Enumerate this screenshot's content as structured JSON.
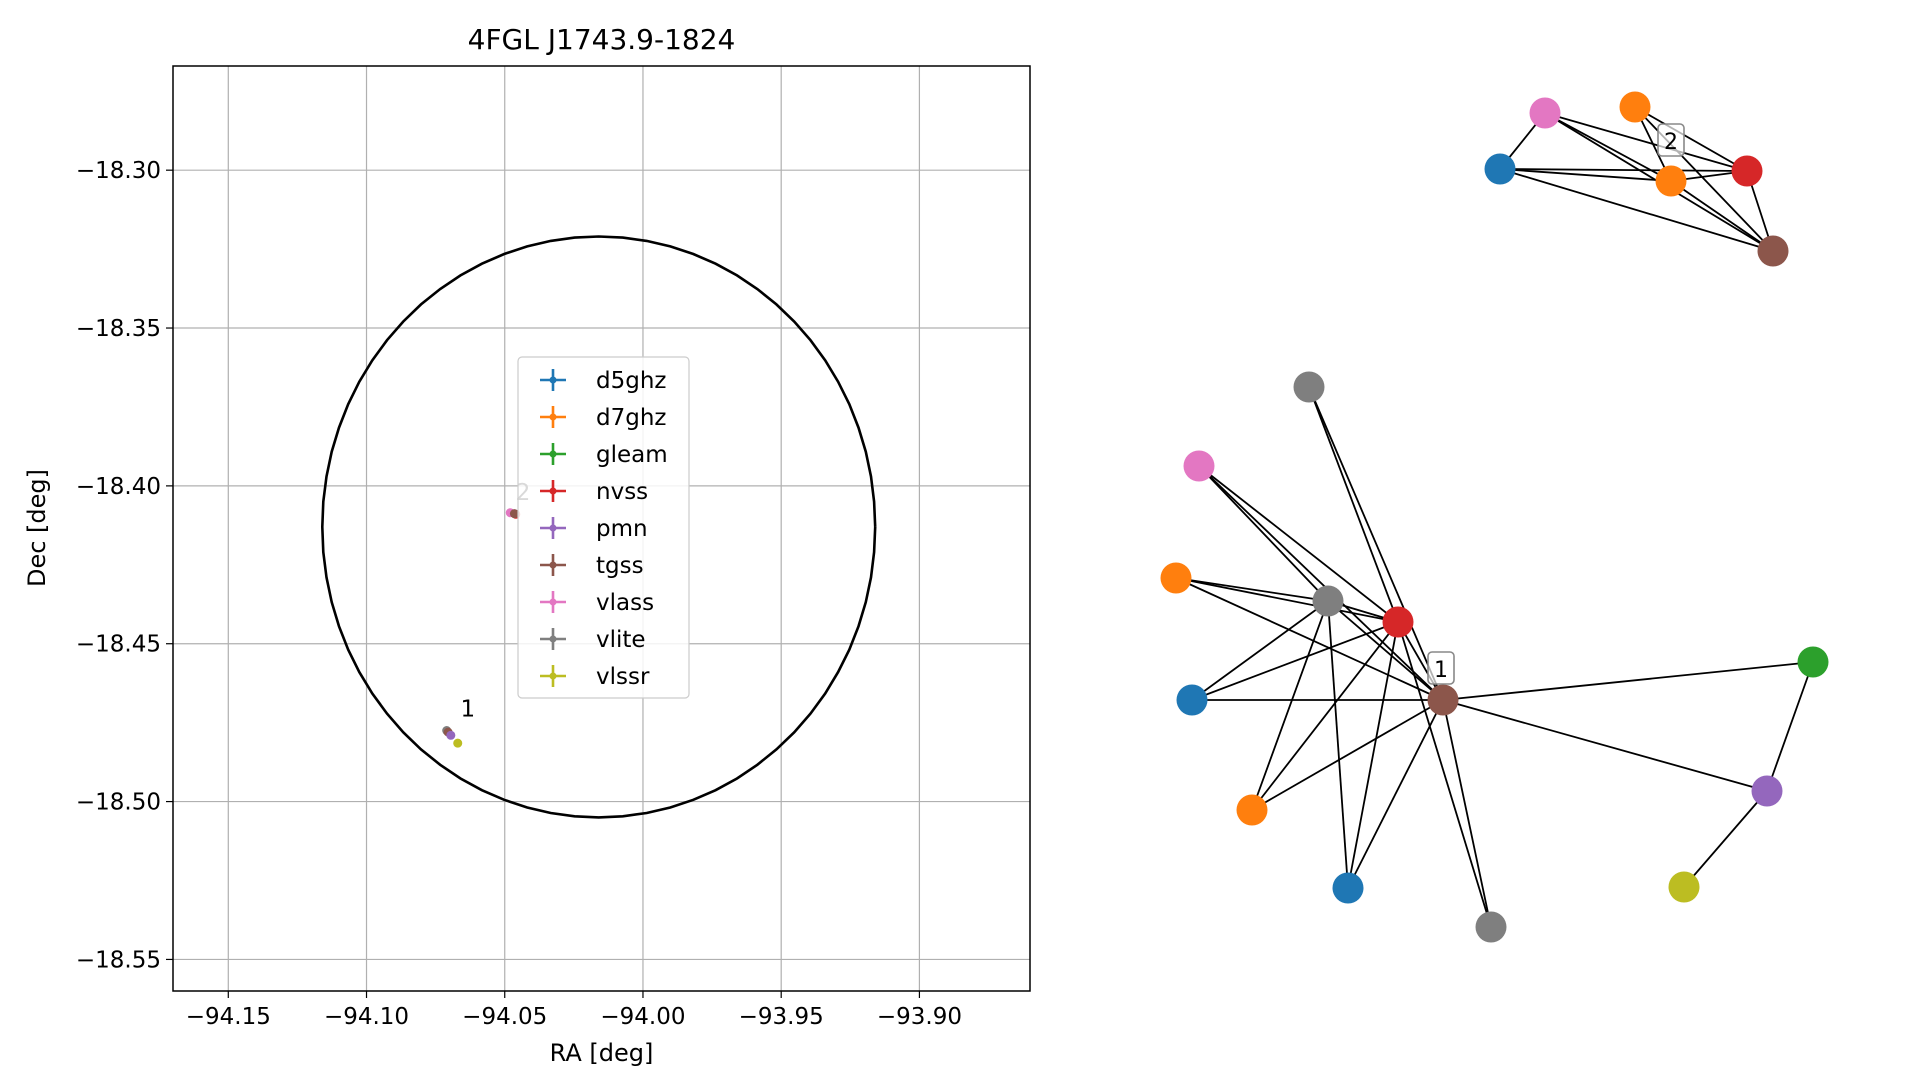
{
  "chart_data": [
    {
      "type": "scatter",
      "title": "4FGL J1743.9-1824",
      "xlabel": "RA [deg]",
      "ylabel": "Dec [deg]",
      "xlim": [
        -94.17,
        -93.86
      ],
      "ylim": [
        -18.56,
        -18.267
      ],
      "xticks": [
        -94.15,
        -94.1,
        -94.05,
        -94.0,
        -93.95,
        -93.9
      ],
      "xtick_labels": [
        "−94.15",
        "−94.10",
        "−94.05",
        "−94.00",
        "−93.95",
        "−93.90"
      ],
      "yticks": [
        -18.3,
        -18.35,
        -18.4,
        -18.45,
        -18.5,
        -18.55
      ],
      "ytick_labels": [
        "−18.30",
        "−18.35",
        "−18.40",
        "−18.45",
        "−18.50",
        "−18.55"
      ],
      "grid": true,
      "legend_position": "center",
      "legend": [
        {
          "name": "d5ghz",
          "color": "#1f77b4"
        },
        {
          "name": "d7ghz",
          "color": "#ff7f0e"
        },
        {
          "name": "gleam",
          "color": "#2ca02c"
        },
        {
          "name": "nvss",
          "color": "#d62728"
        },
        {
          "name": "pmn",
          "color": "#9467bd"
        },
        {
          "name": "tgss",
          "color": "#8c564b"
        },
        {
          "name": "vlass",
          "color": "#e377c2"
        },
        {
          "name": "vlite",
          "color": "#7f7f7f"
        },
        {
          "name": "vlssr",
          "color": "#bcbd22"
        }
      ],
      "ellipse": {
        "center": [
          -94.016,
          -18.413
        ],
        "ra_semi": 0.1,
        "dec_semi": 0.092
      },
      "points": [
        {
          "survey": "vlite",
          "x": -94.071,
          "y": -18.4775
        },
        {
          "survey": "tgss",
          "x": -94.0705,
          "y": -18.478
        },
        {
          "survey": "pmn",
          "x": -94.0695,
          "y": -18.479
        },
        {
          "survey": "vlssr",
          "x": -94.067,
          "y": -18.4815
        },
        {
          "survey": "vlass",
          "x": -94.048,
          "y": -18.4085
        },
        {
          "survey": "nvss",
          "x": -94.046,
          "y": -18.409
        },
        {
          "survey": "tgss",
          "x": -94.0465,
          "y": -18.4088
        }
      ],
      "annotations": [
        {
          "text": "1",
          "x": -94.066,
          "y": -18.473
        },
        {
          "text": "2",
          "x": -94.046,
          "y": -18.4045
        }
      ]
    },
    {
      "type": "network",
      "cluster_labels": [
        "1",
        "2"
      ],
      "nodes": [
        {
          "id": "c1-d5ghz-a",
          "survey": "d5ghz"
        },
        {
          "id": "c1-d5ghz-b",
          "survey": "d5ghz"
        },
        {
          "id": "c1-d7ghz-a",
          "survey": "d7ghz"
        },
        {
          "id": "c1-d7ghz-b",
          "survey": "d7ghz"
        },
        {
          "id": "c1-gleam",
          "survey": "gleam"
        },
        {
          "id": "c1-nvss",
          "survey": "nvss"
        },
        {
          "id": "c1-pmn",
          "survey": "pmn"
        },
        {
          "id": "c1-tgss",
          "survey": "tgss"
        },
        {
          "id": "c1-vlass",
          "survey": "vlass"
        },
        {
          "id": "c1-vlite-a",
          "survey": "vlite"
        },
        {
          "id": "c1-vlite-b",
          "survey": "vlite"
        },
        {
          "id": "c1-vlite-c",
          "survey": "vlite"
        },
        {
          "id": "c1-vlssr",
          "survey": "vlssr"
        },
        {
          "id": "c2-d5ghz",
          "survey": "d5ghz"
        },
        {
          "id": "c2-d7ghz-a",
          "survey": "d7ghz"
        },
        {
          "id": "c2-d7ghz-b",
          "survey": "d7ghz"
        },
        {
          "id": "c2-nvss",
          "survey": "nvss"
        },
        {
          "id": "c2-tgss",
          "survey": "tgss"
        },
        {
          "id": "c2-vlass",
          "survey": "vlass"
        }
      ],
      "edges": [
        [
          "c1-vlite-a",
          "c1-nvss"
        ],
        [
          "c1-vlite-a",
          "c1-tgss"
        ],
        [
          "c1-vlass",
          "c1-vlite-b"
        ],
        [
          "c1-vlass",
          "c1-nvss"
        ],
        [
          "c1-vlass",
          "c1-tgss"
        ],
        [
          "c1-d7ghz-a",
          "c1-vlite-b"
        ],
        [
          "c1-d7ghz-a",
          "c1-nvss"
        ],
        [
          "c1-d7ghz-a",
          "c1-tgss"
        ],
        [
          "c1-vlite-b",
          "c1-nvss"
        ],
        [
          "c1-vlite-b",
          "c1-tgss"
        ],
        [
          "c1-vlite-b",
          "c1-d5ghz-a"
        ],
        [
          "c1-vlite-b",
          "c1-d7ghz-b"
        ],
        [
          "c1-vlite-b",
          "c1-d5ghz-b"
        ],
        [
          "c1-nvss",
          "c1-tgss"
        ],
        [
          "c1-nvss",
          "c1-d5ghz-a"
        ],
        [
          "c1-nvss",
          "c1-d7ghz-b"
        ],
        [
          "c1-nvss",
          "c1-d5ghz-b"
        ],
        [
          "c1-nvss",
          "c1-vlite-c"
        ],
        [
          "c1-tgss",
          "c1-d5ghz-a"
        ],
        [
          "c1-tgss",
          "c1-d7ghz-b"
        ],
        [
          "c1-tgss",
          "c1-d5ghz-b"
        ],
        [
          "c1-tgss",
          "c1-vlite-c"
        ],
        [
          "c1-tgss",
          "c1-gleam"
        ],
        [
          "c1-tgss",
          "c1-pmn"
        ],
        [
          "c1-gleam",
          "c1-pmn"
        ],
        [
          "c1-pmn",
          "c1-vlssr"
        ],
        [
          "c2-vlass",
          "c2-d5ghz"
        ],
        [
          "c2-vlass",
          "c2-d7ghz-b"
        ],
        [
          "c2-vlass",
          "c2-nvss"
        ],
        [
          "c2-vlass",
          "c2-tgss"
        ],
        [
          "c2-d7ghz-a",
          "c2-d7ghz-b"
        ],
        [
          "c2-d7ghz-a",
          "c2-nvss"
        ],
        [
          "c2-d7ghz-a",
          "c2-tgss"
        ],
        [
          "c2-d5ghz",
          "c2-d7ghz-b"
        ],
        [
          "c2-d5ghz",
          "c2-nvss"
        ],
        [
          "c2-d5ghz",
          "c2-tgss"
        ],
        [
          "c2-d7ghz-b",
          "c2-nvss"
        ],
        [
          "c2-d7ghz-b",
          "c2-tgss"
        ],
        [
          "c2-nvss",
          "c2-tgss"
        ]
      ]
    }
  ]
}
